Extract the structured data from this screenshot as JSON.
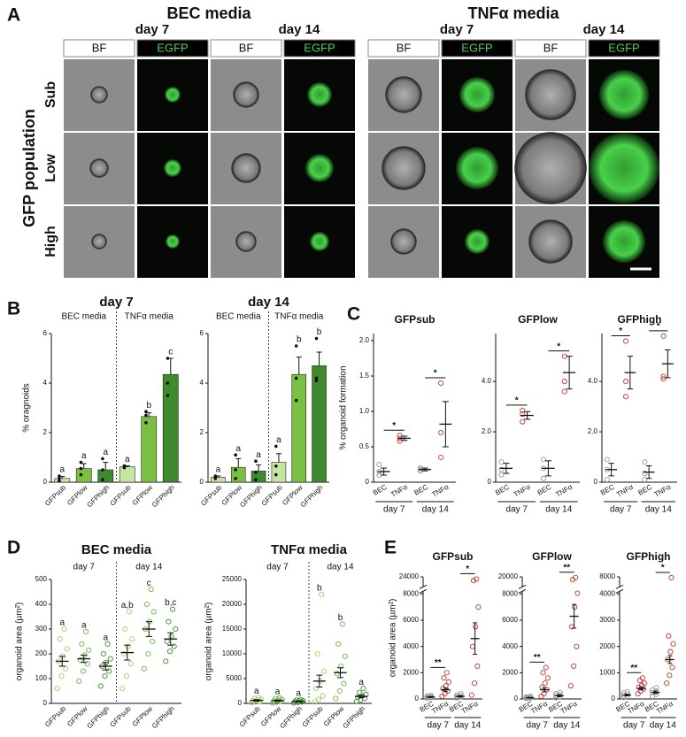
{
  "panel_labels": [
    "A",
    "B",
    "C",
    "D",
    "E"
  ],
  "panel_a": {
    "groups": [
      {
        "title": "BEC media",
        "days": [
          {
            "label": "day 7",
            "channels": [
              "BF",
              "EGFP"
            ]
          },
          {
            "label": "day 14",
            "channels": [
              "BF",
              "EGFP"
            ]
          }
        ]
      },
      {
        "title": "TNFα media",
        "days": [
          {
            "label": "day 7",
            "channels": [
              "BF",
              "EGFP"
            ]
          },
          {
            "label": "day 14",
            "channels": [
              "BF",
              "EGFP"
            ]
          }
        ]
      }
    ],
    "row_title": "GFP population",
    "rows": [
      "Sub",
      "Low",
      "High"
    ]
  },
  "chart_data": [
    {
      "type": "bar",
      "title": "day 7",
      "ylabel": "% oragnoids",
      "groups": [
        "BEC media",
        "TNFα media"
      ],
      "categories": [
        "GFPsub",
        "GFPlow",
        "GFPhigh",
        "GFPsub",
        "GFPlow",
        "GFPhigh"
      ],
      "values": [
        0.15,
        0.55,
        0.5,
        0.62,
        2.65,
        4.35
      ],
      "errors": [
        0.08,
        0.2,
        0.3,
        0.04,
        0.15,
        0.65
      ],
      "points": [
        [
          0.05,
          0.15,
          0.25
        ],
        [
          0.3,
          0.55,
          0.8
        ],
        [
          0.1,
          0.5,
          0.95
        ],
        [
          0.58,
          0.62,
          0.66
        ],
        [
          2.4,
          2.7,
          2.85
        ],
        [
          3.5,
          4.0,
          5.0
        ]
      ],
      "annotations": [
        "a",
        "a",
        "a",
        "a",
        "b",
        "c"
      ],
      "colors": [
        "#c5e6a0",
        "#7cc043",
        "#3f8a2c",
        "#c5e6a0",
        "#7cc043",
        "#3f8a2c"
      ],
      "ylim": [
        0,
        6
      ],
      "yticks": [
        0,
        2,
        4,
        6
      ]
    },
    {
      "type": "bar",
      "title": "day 14",
      "groups": [
        "BEC media",
        "TNFα media"
      ],
      "categories": [
        "GFPsub",
        "GFPlow",
        "GFPhigh",
        "GFPsub",
        "GFPlow",
        "GFPhigh"
      ],
      "values": [
        0.2,
        0.6,
        0.45,
        0.8,
        4.35,
        4.7
      ],
      "errors": [
        0.05,
        0.35,
        0.25,
        0.35,
        0.7,
        0.55
      ],
      "points": [
        [
          0.15,
          0.2,
          0.25
        ],
        [
          0.15,
          0.5,
          1.1
        ],
        [
          0.1,
          0.4,
          0.85
        ],
        [
          0.3,
          0.65,
          1.45
        ],
        [
          3.3,
          4.2,
          5.5
        ],
        [
          4.1,
          4.2,
          5.8
        ]
      ],
      "annotations": [
        "a",
        "a",
        "a",
        "a",
        "b",
        "b"
      ],
      "colors": [
        "#c5e6a0",
        "#7cc043",
        "#3f8a2c",
        "#c5e6a0",
        "#7cc043",
        "#3f8a2c"
      ],
      "ylim": [
        0,
        6
      ],
      "yticks": [
        0,
        2,
        4,
        6
      ]
    },
    {
      "type": "dot",
      "title": "GFPsub",
      "ylabel": "% organoid formation",
      "groups": [
        "day 7",
        "day 14"
      ],
      "categories": [
        "BEC",
        "TNFα",
        "BEC",
        "TNFα"
      ],
      "values": [
        0.15,
        0.62,
        0.18,
        0.82
      ],
      "errors": [
        0.05,
        0.03,
        0.02,
        0.32
      ],
      "points": [
        [
          0.1,
          0.15,
          0.25
        ],
        [
          0.58,
          0.62,
          0.66
        ],
        [
          0.16,
          0.18,
          0.2
        ],
        [
          0.35,
          0.7,
          1.4
        ]
      ],
      "stars": [
        "*",
        "*"
      ],
      "colors": [
        "#9a9a9a",
        "#c0392b",
        "#9a9a9a",
        "#c0392b"
      ],
      "ylim": [
        0,
        2.1
      ],
      "yticks": [
        0,
        0.5,
        {
          "value": 1,
          "label": "1.0"
        },
        1.5,
        {
          "value": 2,
          "label": "2.0"
        }
      ]
    },
    {
      "type": "dot",
      "title": "GFPlow",
      "groups": [
        "day 7",
        "day 14"
      ],
      "categories": [
        "BEC",
        "TNFα",
        "BEC",
        "TNFα"
      ],
      "values": [
        0.55,
        2.65,
        0.55,
        4.35
      ],
      "errors": [
        0.2,
        0.15,
        0.3,
        0.65
      ],
      "points": [
        [
          0.3,
          0.5,
          0.8
        ],
        [
          2.4,
          2.7,
          2.85
        ],
        [
          0.15,
          0.55,
          0.9
        ],
        [
          3.6,
          4.0,
          5.0
        ]
      ],
      "stars": [
        "*",
        "*"
      ],
      "colors": [
        "#9a9a9a",
        "#c0392b",
        "#9a9a9a",
        "#c0392b"
      ],
      "ylim": [
        0,
        5.9
      ],
      "yticks": [
        0,
        {
          "value": 2,
          "label": "2.0"
        },
        {
          "value": 4,
          "label": "4.0"
        }
      ]
    },
    {
      "type": "dot",
      "title": "GFPhigh",
      "groups": [
        "day 7",
        "day 14"
      ],
      "categories": [
        "BEC",
        "TNFα",
        "BEC",
        "TNFα"
      ],
      "values": [
        0.5,
        4.35,
        0.4,
        4.7
      ],
      "errors": [
        0.25,
        0.65,
        0.25,
        0.55
      ],
      "points": [
        [
          0.1,
          0.5,
          0.9
        ],
        [
          3.4,
          4.0,
          5.6
        ],
        [
          0.1,
          0.35,
          0.8
        ],
        [
          4.1,
          4.2,
          5.8
        ]
      ],
      "stars": [
        "*",
        "*"
      ],
      "colors": [
        "#9a9a9a",
        "#c0392b",
        "#9a9a9a",
        "#c0392b"
      ],
      "ylim": [
        0,
        5.9
      ],
      "yticks": [
        0,
        {
          "value": 2,
          "label": "2.0"
        },
        {
          "value": 4,
          "label": "4.0"
        }
      ]
    },
    {
      "type": "dot",
      "title": "BEC media",
      "ylabel": "organoid area (µm²)",
      "groups": [
        "day 7",
        "day 14"
      ],
      "categories": [
        "GFPsub",
        "GFPlow",
        "GFPhigh",
        "GFPsub",
        "GFPlow",
        "GFPhigh"
      ],
      "values": [
        170,
        180,
        150,
        205,
        300,
        260
      ],
      "errors": [
        20,
        15,
        15,
        30,
        30,
        25
      ],
      "points": [
        [
          60,
          110,
          140,
          170,
          190,
          220,
          260,
          300
        ],
        [
          90,
          130,
          160,
          175,
          195,
          215,
          240,
          290
        ],
        [
          70,
          110,
          130,
          150,
          165,
          180,
          200,
          240
        ],
        [
          60,
          110,
          160,
          200,
          230,
          260,
          300,
          370
        ],
        [
          140,
          200,
          250,
          300,
          330,
          370,
          400,
          460
        ],
        [
          170,
          210,
          230,
          250,
          270,
          300,
          330,
          380
        ]
      ],
      "annotations": [
        "a",
        "a",
        "a",
        "a,b",
        "c",
        "b,c"
      ],
      "colors": [
        "#9fd266",
        "#6ab53f",
        "#3d8b2d",
        "#9fd266",
        "#6ab53f",
        "#3d8b2d"
      ],
      "ylim": [
        0,
        500
      ],
      "yticks": [
        0,
        100,
        200,
        300,
        400,
        500
      ]
    },
    {
      "type": "dot",
      "title": "TNFα media",
      "ylabel": "organoid area (µm²)",
      "groups": [
        "day 7",
        "day 14"
      ],
      "categories": [
        "GFPsub",
        "GFPlow",
        "GFPhigh",
        "GFPsub",
        "GFPlow",
        "GFPhigh"
      ],
      "values": [
        600,
        550,
        400,
        4500,
        6200,
        1400
      ],
      "errors": [
        150,
        120,
        80,
        1200,
        1000,
        250
      ],
      "points": [
        [
          150,
          300,
          450,
          550,
          700,
          850,
          1000,
          1200
        ],
        [
          100,
          250,
          400,
          500,
          650,
          800,
          950,
          1100
        ],
        [
          100,
          200,
          300,
          350,
          450,
          550,
          650,
          750
        ],
        [
          300,
          800,
          1500,
          3000,
          4500,
          6500,
          10000,
          22000
        ],
        [
          1000,
          2500,
          4000,
          6000,
          7500,
          9500,
          12000,
          16000
        ],
        [
          400,
          700,
          1000,
          1200,
          1500,
          1800,
          2200,
          3000
        ]
      ],
      "annotations": [
        "a",
        "a",
        "a",
        "b",
        "b",
        "a"
      ],
      "colors": [
        "#9fd266",
        "#6ab53f",
        "#3d8b2d",
        "#9fd266",
        "#6ab53f",
        "#3d8b2d"
      ],
      "ylim": [
        0,
        25000
      ],
      "yticks": [
        0,
        5000,
        10000,
        15000,
        20000,
        25000
      ]
    },
    {
      "type": "dot",
      "title": "GFPsub",
      "ylabel": "organoid area (µm²)",
      "groups": [
        "day 7",
        "day 14"
      ],
      "categories": [
        "BEC",
        "TNFα",
        "BEC",
        "TNFα"
      ],
      "values": [
        150,
        700,
        200,
        4600
      ],
      "errors": [
        40,
        120,
        50,
        1200
      ],
      "points": [
        [
          60,
          100,
          150,
          180,
          220,
          260
        ],
        [
          200,
          400,
          600,
          800,
          1000,
          1300,
          1600,
          2000
        ],
        [
          80,
          150,
          200,
          250,
          300,
          400
        ],
        [
          300,
          1200,
          2500,
          4000,
          5500,
          7000,
          20500,
          22000
        ]
      ],
      "stars": [
        "**",
        "*"
      ],
      "colors": [
        "#9a9a9a",
        "#c0392b",
        "#9a9a9a",
        "#c0392b"
      ],
      "ylim": [
        0,
        24000
      ],
      "yticks": [
        0,
        2000,
        4000,
        6000,
        8000,
        24000
      ],
      "ybreak": true
    },
    {
      "type": "dot",
      "title": "GFPlow",
      "groups": [
        "day 7",
        "day 14"
      ],
      "categories": [
        "BEC",
        "TNFα",
        "BEC",
        "TNFα"
      ],
      "values": [
        100,
        700,
        250,
        6300
      ],
      "errors": [
        30,
        150,
        80,
        900
      ],
      "points": [
        [
          40,
          70,
          100,
          130,
          160,
          200
        ],
        [
          200,
          400,
          700,
          900,
          1200,
          1600,
          2000,
          2400
        ],
        [
          100,
          180,
          250,
          320,
          400,
          500
        ],
        [
          1000,
          2500,
          4000,
          5500,
          7000,
          8500,
          18000,
          19500
        ]
      ],
      "stars": [
        "**",
        "**"
      ],
      "colors": [
        "#9a9a9a",
        "#c0392b",
        "#9a9a9a",
        "#c0392b"
      ],
      "ylim": [
        0,
        20000
      ],
      "yticks": [
        0,
        2000,
        4000,
        6000,
        8000,
        20000
      ],
      "ybreak": true
    },
    {
      "type": "dot",
      "title": "GFPhigh",
      "groups": [
        "day 7",
        "day 14"
      ],
      "categories": [
        "BEC",
        "TNFα",
        "BEC",
        "TNFα"
      ],
      "values": [
        150,
        400,
        250,
        1500
      ],
      "errors": [
        30,
        50,
        50,
        150
      ],
      "points": [
        [
          60,
          100,
          150,
          190,
          230,
          270
        ],
        [
          200,
          300,
          380,
          450,
          520,
          600,
          700,
          800
        ],
        [
          100,
          180,
          250,
          300,
          350,
          420
        ],
        [
          600,
          900,
          1200,
          1500,
          1800,
          2100,
          2400,
          7800
        ]
      ],
      "stars": [
        "**",
        "*"
      ],
      "colors": [
        "#9a9a9a",
        "#c0392b",
        "#9a9a9a",
        "#c0392b"
      ],
      "ylim": [
        0,
        8000
      ],
      "yticks": [
        0,
        1000,
        2000,
        3000,
        4000,
        8000
      ],
      "ybreak": true
    }
  ]
}
